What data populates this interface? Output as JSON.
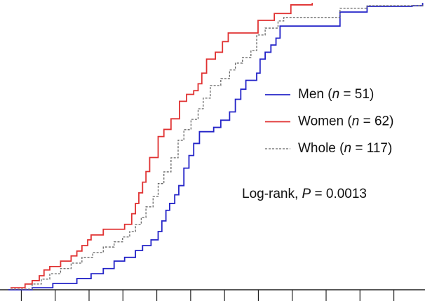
{
  "chart_data": {
    "type": "step",
    "series": [
      {
        "name": "Men (n = 51)",
        "color": "#2424c8",
        "dash": false,
        "x": [
          -0.38,
          0.32,
          0.93,
          1.64,
          2.06,
          2.42,
          2.74,
          3.05,
          3.37,
          3.58,
          3.83,
          4.04,
          4.15,
          4.27,
          4.38,
          4.53,
          4.65,
          4.8,
          4.95,
          5.09,
          5.26,
          5.68,
          5.89,
          6.15,
          6.32,
          6.48,
          6.63,
          6.95,
          7.05,
          7.2,
          7.37,
          7.52,
          7.64,
          9.41,
          10.21,
          11.54,
          11.85
        ],
        "values": [
          0,
          0.7,
          2.2,
          3.9,
          5.6,
          7.4,
          10.0,
          11.3,
          13.7,
          15.4,
          17.4,
          20.3,
          24.0,
          27.7,
          30.1,
          33.1,
          36.3,
          42.4,
          46.8,
          51.0,
          55.1,
          56.6,
          59.1,
          62.0,
          66.4,
          69.9,
          73.0,
          75.5,
          80.4,
          82.8,
          85.3,
          87.7,
          91.9,
          96.8,
          98.8,
          99.0,
          100
        ]
      },
      {
        "name": "Women (n = 62)",
        "color": "#e03232",
        "dash": false,
        "x": [
          -0.32,
          0.11,
          0.32,
          0.53,
          0.67,
          0.84,
          1.16,
          1.47,
          1.64,
          1.79,
          1.96,
          2.06,
          2.42,
          3.05,
          3.26,
          3.37,
          3.47,
          3.58,
          3.68,
          3.79,
          4.04,
          4.21,
          4.42,
          4.67,
          4.88,
          5.09,
          5.22,
          5.33,
          5.47,
          5.73,
          5.94,
          6.11,
          6.99,
          7.47,
          7.96,
          8.59
        ],
        "values": [
          0.7,
          2.0,
          3.2,
          4.9,
          6.9,
          8.1,
          10.0,
          11.8,
          13.5,
          15.4,
          17.4,
          19.1,
          21.1,
          22.8,
          26.5,
          30.1,
          33.8,
          37.5,
          41.2,
          46.1,
          53.4,
          55.9,
          59.6,
          65.7,
          68.1,
          69.4,
          71.8,
          75.5,
          80.4,
          82.8,
          86.5,
          89.5,
          93.9,
          96.3,
          99.3,
          100
        ]
      },
      {
        "name": "Whole (n = 117)",
        "color": "#666666",
        "dash": true,
        "x": [
          -0.32,
          0.32,
          0.59,
          0.84,
          1.16,
          1.47,
          1.79,
          2.11,
          2.42,
          2.74,
          2.99,
          3.2,
          3.37,
          3.54,
          3.68,
          3.89,
          4.04,
          4.21,
          4.42,
          4.63,
          4.8,
          5.01,
          5.22,
          5.37,
          5.58,
          5.89,
          6.15,
          6.32,
          6.53,
          6.78,
          6.95,
          7.2,
          7.58,
          7.75,
          9.41,
          10.21,
          11.85
        ],
        "values": [
          0.2,
          2.0,
          3.7,
          5.6,
          7.4,
          9.3,
          11.3,
          13.0,
          14.9,
          16.7,
          18.4,
          20.3,
          22.8,
          25.2,
          28.9,
          32.5,
          37.0,
          41.1,
          46.0,
          52.1,
          55.8,
          59.4,
          63.1,
          66.8,
          71.2,
          73.6,
          76.6,
          79.0,
          80.9,
          83.4,
          88.8,
          91.2,
          93.7,
          94.9,
          98.1,
          99.0,
          99.8
        ]
      }
    ],
    "annotation": "Log-rank, P = 0.0013",
    "xlim": [
      -0.63,
      11.92
    ],
    "xticks": [
      0,
      1,
      2,
      3,
      4,
      5,
      6,
      7,
      8,
      9,
      10,
      11
    ],
    "ylim": [
      0,
      101
    ]
  }
}
